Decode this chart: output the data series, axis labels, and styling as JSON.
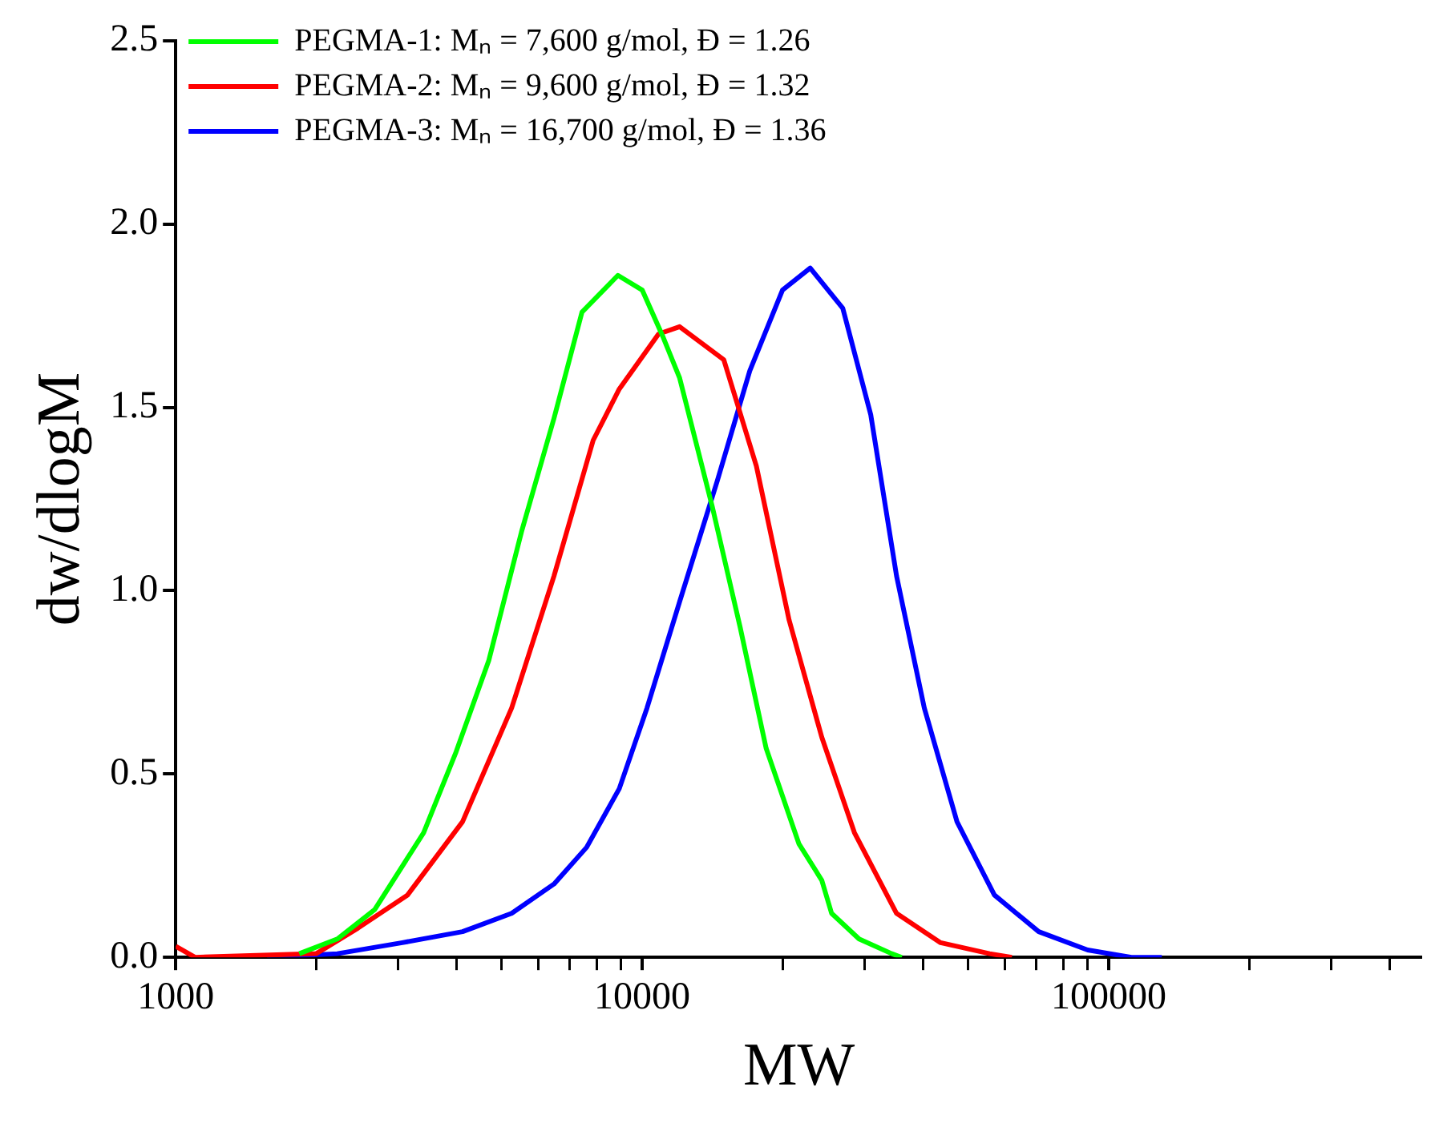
{
  "chart_data": {
    "type": "line",
    "xlabel": "MW",
    "ylabel": "dw/dlogM",
    "log": "x",
    "grid": false,
    "legend": "top left",
    "marker": "none",
    "line_style": "solid",
    "xlim": [
      1000,
      470000
    ],
    "xticks": [
      1000,
      {
        "value": 2000,
        "label": null
      },
      {
        "value": 3000,
        "label": null
      },
      {
        "value": 4000,
        "label": null
      },
      {
        "value": 5000,
        "label": null
      },
      {
        "value": 6000,
        "label": null
      },
      {
        "value": 7000,
        "label": null
      },
      {
        "value": 8000,
        "label": null
      },
      {
        "value": 9000,
        "label": null
      },
      10000,
      {
        "value": 20000,
        "label": null
      },
      {
        "value": 30000,
        "label": null
      },
      {
        "value": 40000,
        "label": null
      },
      {
        "value": 50000,
        "label": null
      },
      {
        "value": 60000,
        "label": null
      },
      {
        "value": 70000,
        "label": null
      },
      {
        "value": 80000,
        "label": null
      },
      {
        "value": 90000,
        "label": null
      },
      100000,
      {
        "value": 200000,
        "label": null
      },
      {
        "value": 300000,
        "label": null
      },
      {
        "value": 400000,
        "label": null
      }
    ],
    "ylim": [
      0,
      2.5
    ],
    "yticks": [
      {
        "value": 0,
        "label": "0.0"
      },
      {
        "value": 0.5,
        "label": "0.5"
      },
      {
        "value": 1,
        "label": "1.0"
      },
      {
        "value": 1.5,
        "label": "1.5"
      },
      {
        "value": 2,
        "label": "2.0"
      },
      {
        "value": 2.5,
        "label": "2.5"
      }
    ],
    "series": [
      {
        "name": "PEGMA-1: Mₙ = 7,600 g/mol, Đ = 1.26",
        "color": "#00ff00",
        "x": [
          1840,
          2220,
          2670,
          3400,
          3990,
          4690,
          5510,
          6470,
          7430,
          8870,
          10000,
          11100,
          12030,
          14130,
          16220,
          18440,
          21670,
          24270,
          25470,
          29170,
          34280,
          36000
        ],
        "values": [
          0.01,
          0.05,
          0.13,
          0.34,
          0.56,
          0.81,
          1.16,
          1.47,
          1.76,
          1.86,
          1.82,
          1.69,
          1.58,
          1.23,
          0.9,
          0.57,
          0.31,
          0.21,
          0.12,
          0.05,
          0.01,
          0
        ]
      },
      {
        "name": "PEGMA-2: Mₙ = 9,600 g/mol, Đ = 1.32",
        "color": "#ff0000",
        "x": [
          1000,
          1100,
          2000,
          2460,
          3140,
          4120,
          5250,
          6470,
          7850,
          8930,
          10840,
          12030,
          14960,
          17570,
          20650,
          24270,
          28510,
          35100,
          43620,
          55580,
          62000
        ],
        "values": [
          0.03,
          0,
          0.01,
          0.08,
          0.17,
          0.37,
          0.68,
          1.04,
          1.41,
          1.55,
          1.7,
          1.72,
          1.63,
          1.34,
          0.92,
          0.6,
          0.34,
          0.12,
          0.04,
          0.01,
          0
        ]
      },
      {
        "name": "PEGMA-3: Mₙ = 16,700 g/mol, Đ = 1.36",
        "color": "#0000ff",
        "x": [
          1570,
          2220,
          3060,
          4120,
          5250,
          6470,
          7600,
          8930,
          10240,
          12030,
          14490,
          17010,
          19990,
          22920,
          26920,
          30900,
          35100,
          40250,
          47300,
          56890,
          70800,
          90150,
          111900,
          130000
        ],
        "values": [
          0,
          0.01,
          0.04,
          0.07,
          0.12,
          0.2,
          0.3,
          0.46,
          0.68,
          0.97,
          1.3,
          1.6,
          1.82,
          1.88,
          1.77,
          1.48,
          1.04,
          0.68,
          0.37,
          0.17,
          0.07,
          0.02,
          0,
          0
        ]
      }
    ]
  }
}
